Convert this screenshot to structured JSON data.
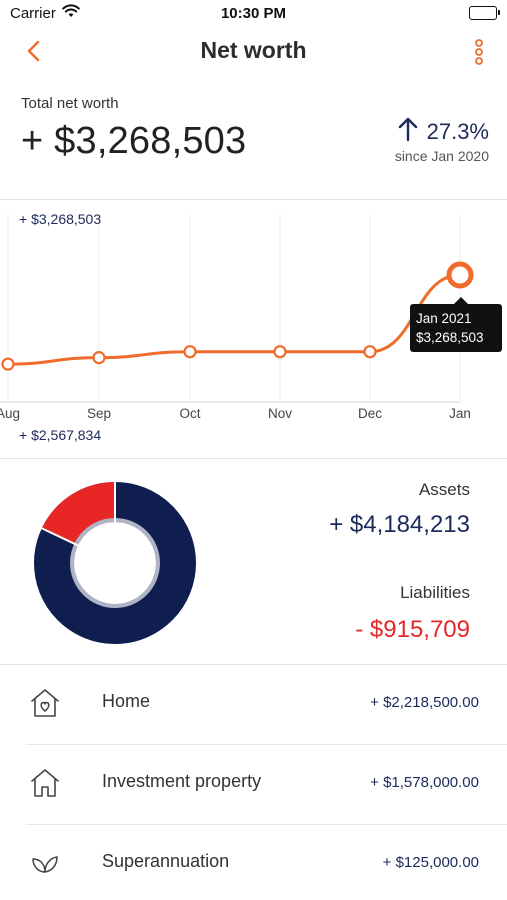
{
  "status_bar": {
    "carrier": "Carrier",
    "time": "10:30 PM"
  },
  "nav": {
    "title": "Net worth"
  },
  "summary": {
    "label": "Total net worth",
    "value": "+ $3,268,503",
    "change_pct": "27.3%",
    "since": "since Jan 2020"
  },
  "chart_data": {
    "type": "line",
    "categories": [
      "Aug",
      "Sep",
      "Oct",
      "Nov",
      "Dec",
      "Jan"
    ],
    "values": [
      2920000,
      2980000,
      3035000,
      3035000,
      3035000,
      3268503
    ],
    "max_label": "+ $3,268,503",
    "min_label": "+ $2,567,834",
    "ylim": [
      2567834,
      3268503
    ],
    "grid": true,
    "tooltip": {
      "title": "Jan 2021",
      "value": "$3,268,503"
    },
    "colors": {
      "line": "#ef6c2c"
    }
  },
  "breakdown": {
    "assets_label": "Assets",
    "assets_value": "+ $4,184,213",
    "liabilities_label": "Liabilities",
    "liabilities_value": "- $915,709",
    "donut": {
      "assets": 4184213,
      "liabilities": 915709,
      "colors": {
        "assets": "#0f1e4f",
        "liabilities": "#e82626"
      }
    }
  },
  "items": [
    {
      "label": "Home",
      "amount": "+ $2,218,500.00",
      "icon": "house-heart-icon"
    },
    {
      "label": "Investment property",
      "amount": "+ $1,578,000.00",
      "icon": "house-icon"
    },
    {
      "label": "Superannuation",
      "amount": "+ $125,000.00",
      "icon": "leaf-icon"
    }
  ],
  "colors": {
    "accent": "#ef6c2c",
    "navy": "#1c2a5a",
    "negative": "#e52727"
  }
}
